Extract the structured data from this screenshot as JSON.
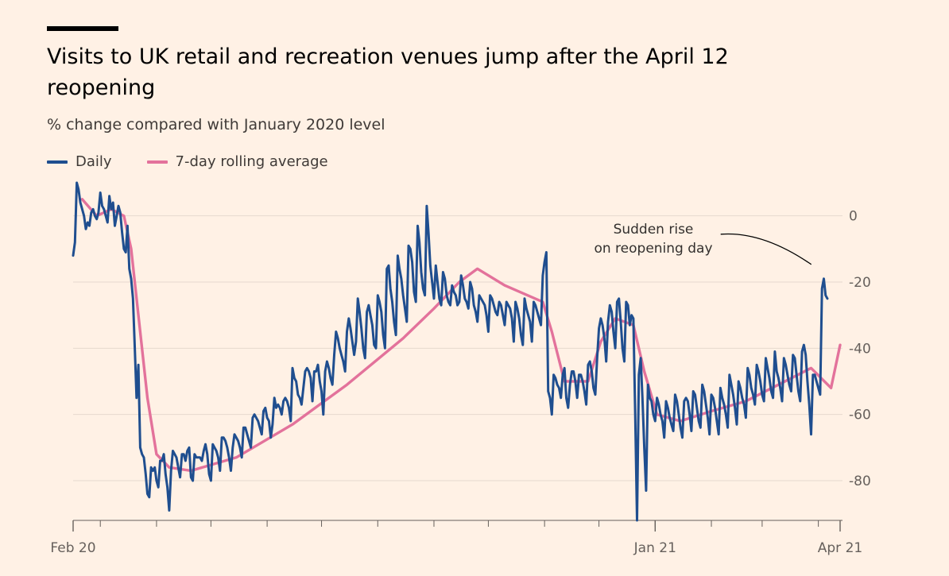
{
  "header": {
    "title": "Visits to UK retail and recreation venues jump after the April 12 reopening",
    "subtitle": "% change compared with January 2020 level"
  },
  "legend": {
    "daily_label": "Daily",
    "avg_label": "7-day rolling average"
  },
  "colors": {
    "background": "#fff1e5",
    "daily": "#1f4e8f",
    "average": "#e3729b",
    "grid": "#e6d9ce",
    "axis": "#66605c"
  },
  "chart_data": {
    "type": "line",
    "title": "Visits to UK retail and recreation venues jump after the April 12 reopening",
    "subtitle": "% change compared with January 2020 level",
    "xlabel": "",
    "ylabel": "% change compared with January 2020 level",
    "x_range": [
      "2020-02-15",
      "2021-04-13"
    ],
    "ylim": [
      -92,
      10
    ],
    "y_ticks": [
      0,
      -20,
      -40,
      -60,
      -80
    ],
    "x_tick_labels": [
      {
        "label": "Feb 20",
        "date": "2020-02-15"
      },
      {
        "label": "Jan 21",
        "date": "2021-01-01"
      },
      {
        "label": "Apr 21",
        "date": "2021-04-13"
      }
    ],
    "series": [
      {
        "name": "Daily",
        "x_start": "2020-02-15",
        "step_days": 1,
        "values": [
          -12,
          -8,
          10,
          8,
          4,
          2,
          0,
          -4,
          -2,
          -3,
          1,
          2,
          0,
          -1,
          1,
          7,
          3,
          2,
          0,
          -2,
          6,
          2,
          4,
          -3,
          0,
          3,
          1,
          -5,
          -10,
          -11,
          -3,
          -16,
          -19,
          -25,
          -40,
          -55,
          -45,
          -70,
          -72,
          -73,
          -78,
          -84,
          -85,
          -76,
          -77,
          -76,
          -80,
          -82,
          -74,
          -74,
          -72,
          -78,
          -82,
          -89,
          -77,
          -71,
          -72,
          -73,
          -76,
          -79,
          -72,
          -72,
          -74,
          -71,
          -70,
          -79,
          -80,
          -72,
          -73,
          -73,
          -73,
          -74,
          -71,
          -69,
          -72,
          -78,
          -80,
          -69,
          -70,
          -71,
          -73,
          -77,
          -67,
          -67,
          -68,
          -70,
          -73,
          -77,
          -70,
          -66,
          -67,
          -68,
          -70,
          -73,
          -64,
          -64,
          -66,
          -68,
          -70,
          -61,
          -60,
          -61,
          -62,
          -64,
          -66,
          -59,
          -58,
          -61,
          -62,
          -67,
          -63,
          -55,
          -58,
          -57,
          -58,
          -60,
          -56,
          -55,
          -56,
          -58,
          -62,
          -46,
          -49,
          -50,
          -54,
          -55,
          -57,
          -52,
          -47,
          -46,
          -47,
          -49,
          -56,
          -47,
          -47,
          -45,
          -50,
          -53,
          -60,
          -47,
          -44,
          -46,
          -49,
          -51,
          -42,
          -35,
          -37,
          -40,
          -42,
          -44,
          -47,
          -35,
          -31,
          -34,
          -38,
          -42,
          -38,
          -25,
          -29,
          -34,
          -40,
          -43,
          -29,
          -27,
          -30,
          -33,
          -39,
          -40,
          -24,
          -26,
          -29,
          -36,
          -40,
          -16,
          -15,
          -22,
          -26,
          -32,
          -36,
          -12,
          -16,
          -19,
          -24,
          -28,
          -32,
          -9,
          -10,
          -14,
          -23,
          -26,
          -3,
          -8,
          -17,
          -22,
          -24,
          3,
          -5,
          -15,
          -20,
          -25,
          -15,
          -20,
          -25,
          -27,
          -17,
          -19,
          -24,
          -26,
          -27,
          -21,
          -23,
          -24,
          -27,
          -26,
          -18,
          -21,
          -25,
          -26,
          -28,
          -20,
          -22,
          -27,
          -29,
          -32,
          -24,
          -25,
          -26,
          -27,
          -30,
          -35,
          -24,
          -25,
          -27,
          -29,
          -30,
          -26,
          -27,
          -30,
          -33,
          -26,
          -27,
          -28,
          -31,
          -38,
          -26,
          -28,
          -31,
          -36,
          -39,
          -25,
          -28,
          -30,
          -32,
          -38,
          -26,
          -27,
          -29,
          -31,
          -33,
          -18,
          -14,
          -11,
          -53,
          -55,
          -60,
          -48,
          -49,
          -51,
          -52,
          -55,
          -48,
          -46,
          -55,
          -58,
          -51,
          -47,
          -47,
          -50,
          -55,
          -48,
          -48,
          -50,
          -53,
          -57,
          -45,
          -44,
          -47,
          -52,
          -54,
          -43,
          -34,
          -31,
          -33,
          -37,
          -44,
          -32,
          -27,
          -29,
          -35,
          -40,
          -26,
          -25,
          -32,
          -40,
          -44,
          -26,
          -27,
          -33,
          -30,
          -31,
          -60,
          -92,
          -48,
          -43,
          -55,
          -70,
          -83,
          -51,
          -55,
          -56,
          -60,
          -62,
          -55,
          -57,
          -60,
          -62,
          -67,
          -56,
          -58,
          -61,
          -63,
          -65,
          -54,
          -56,
          -60,
          -64,
          -67,
          -56,
          -55,
          -56,
          -60,
          -65,
          -53,
          -54,
          -58,
          -62,
          -64,
          -51,
          -53,
          -57,
          -61,
          -66,
          -54,
          -55,
          -58,
          -62,
          -66,
          -52,
          -55,
          -57,
          -60,
          -64,
          -48,
          -51,
          -54,
          -58,
          -63,
          -50,
          -52,
          -55,
          -57,
          -61,
          -46,
          -48,
          -52,
          -54,
          -57,
          -45,
          -47,
          -50,
          -54,
          -56,
          -43,
          -46,
          -49,
          -53,
          -55,
          -41,
          -47,
          -49,
          -52,
          -56,
          -43,
          -45,
          -48,
          -51,
          -53,
          -42,
          -43,
          -48,
          -53,
          -56,
          -41,
          -39,
          -42,
          -50,
          -57,
          -66,
          -48,
          -48,
          -50,
          -52,
          -54,
          -22,
          -19,
          -24,
          -25
        ]
      },
      {
        "name": "7-day rolling average",
        "points": [
          [
            "2020-02-20",
            5
          ],
          [
            "2020-02-28",
            0
          ],
          [
            "2020-03-07",
            2
          ],
          [
            "2020-03-14",
            0
          ],
          [
            "2020-03-18",
            -10
          ],
          [
            "2020-03-22",
            -30
          ],
          [
            "2020-03-27",
            -55
          ],
          [
            "2020-04-01",
            -72
          ],
          [
            "2020-04-08",
            -76
          ],
          [
            "2020-04-20",
            -77
          ],
          [
            "2020-05-15",
            -73
          ],
          [
            "2020-06-15",
            -63
          ],
          [
            "2020-07-15",
            -51
          ],
          [
            "2020-08-15",
            -37
          ],
          [
            "2020-09-01",
            -28
          ],
          [
            "2020-09-15",
            -20
          ],
          [
            "2020-09-25",
            -16
          ],
          [
            "2020-10-10",
            -21
          ],
          [
            "2020-10-31",
            -26
          ],
          [
            "2020-11-05",
            -35
          ],
          [
            "2020-11-12",
            -50
          ],
          [
            "2020-11-25",
            -50
          ],
          [
            "2020-12-02",
            -38
          ],
          [
            "2020-12-10",
            -31
          ],
          [
            "2020-12-20",
            -33
          ],
          [
            "2020-12-26",
            -47
          ],
          [
            "2021-01-02",
            -60
          ],
          [
            "2021-01-15",
            -62
          ],
          [
            "2021-02-01",
            -59
          ],
          [
            "2021-02-20",
            -56
          ],
          [
            "2021-03-10",
            -51
          ],
          [
            "2021-03-28",
            -46
          ],
          [
            "2021-04-08",
            -52
          ],
          [
            "2021-04-13",
            -39
          ]
        ]
      }
    ],
    "annotations": [
      {
        "text_lines": [
          "Sudden rise",
          "on reopening day"
        ],
        "target_date": "2021-04-12",
        "target_value": -19
      }
    ]
  }
}
